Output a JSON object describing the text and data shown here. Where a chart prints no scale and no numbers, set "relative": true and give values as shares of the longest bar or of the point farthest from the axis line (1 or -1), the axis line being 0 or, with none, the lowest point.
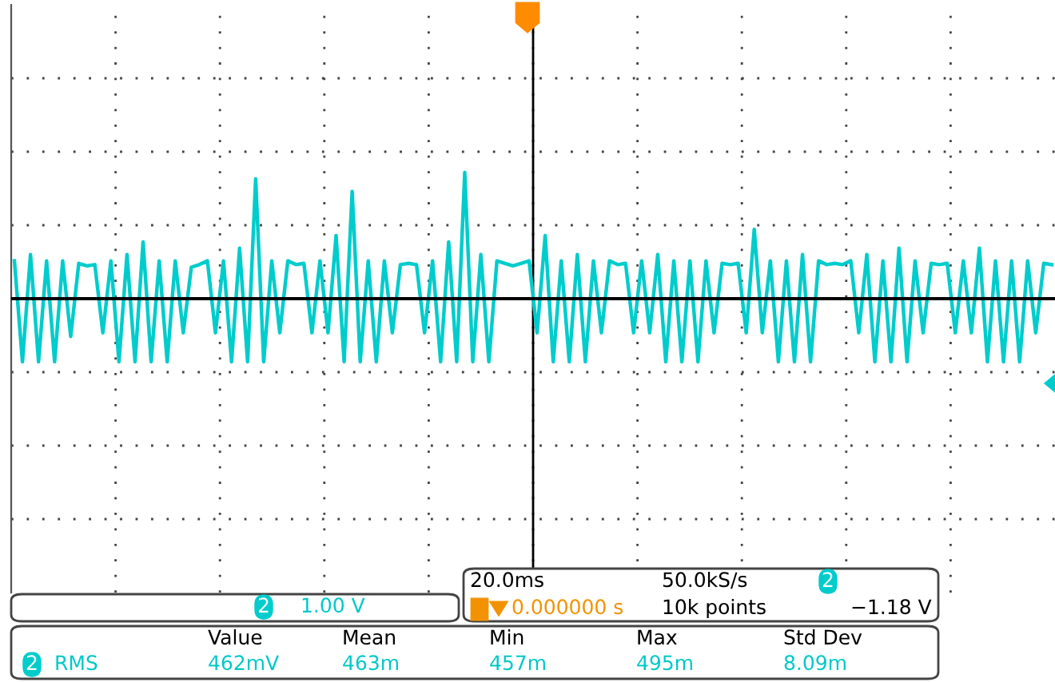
{
  "chart_data": {
    "type": "line",
    "relative": true,
    "grid": true,
    "line_style": "solid",
    "marker": "none",
    "categories": [
      null,
      null,
      null,
      null,
      null,
      null,
      null,
      null,
      null,
      null,
      null,
      null,
      null,
      null,
      null,
      null,
      null,
      null,
      null,
      null,
      null,
      null,
      null,
      null,
      null,
      null,
      null,
      null,
      null,
      null,
      null,
      null,
      null,
      null,
      null,
      null,
      null,
      null,
      null,
      null,
      null,
      null,
      null,
      null,
      null,
      null,
      null,
      null,
      null,
      null,
      null,
      null,
      null,
      null,
      null,
      null,
      null,
      null,
      null,
      null,
      null,
      null,
      null,
      null,
      null,
      null,
      null,
      null,
      null,
      null,
      null,
      null,
      null,
      null,
      null,
      null,
      null,
      null,
      null,
      null,
      null,
      null,
      null,
      null,
      null,
      null,
      null,
      null,
      null,
      null,
      null,
      null,
      null,
      null,
      null,
      null,
      null,
      null,
      null,
      null,
      null,
      null,
      null,
      null,
      null,
      null,
      null,
      null,
      null,
      null,
      null,
      null,
      null,
      null,
      null,
      null,
      null,
      null,
      null,
      null,
      null,
      null,
      null,
      null,
      null,
      null,
      null,
      null,
      null,
      null
    ],
    "series": [
      {
        "color": "#00cccc",
        "values": [
          0.3,
          -0.5,
          0.35,
          -0.5,
          0.3,
          -0.5,
          0.3,
          -0.3,
          0.28,
          0.26,
          0.27,
          -0.27,
          0.3,
          -0.5,
          0.35,
          -0.5,
          0.45,
          -0.5,
          0.3,
          -0.5,
          0.3,
          -0.27,
          0.25,
          0.27,
          0.3,
          -0.27,
          0.3,
          -0.5,
          0.4,
          -0.5,
          0.95,
          -0.5,
          0.3,
          -0.27,
          0.3,
          0.27,
          0.28,
          -0.27,
          0.3,
          -0.27,
          0.5,
          -0.5,
          0.85,
          -0.5,
          0.3,
          -0.5,
          0.3,
          -0.27,
          0.27,
          0.28,
          0.27,
          -0.27,
          0.3,
          -0.5,
          0.45,
          -0.5,
          1.0,
          -0.5,
          0.35,
          -0.5,
          0.3,
          0.28,
          0.26,
          0.28,
          0.3,
          -0.27,
          0.5,
          -0.5,
          0.3,
          -0.5,
          0.35,
          -0.5,
          0.3,
          -0.27,
          0.3,
          0.27,
          0.28,
          -0.27,
          0.3,
          -0.27,
          0.35,
          -0.5,
          0.3,
          -0.5,
          0.3,
          -0.5,
          0.3,
          -0.27,
          0.28,
          0.27,
          0.28,
          -0.27,
          0.55,
          -0.27,
          0.3,
          -0.5,
          0.3,
          -0.5,
          0.35,
          -0.5,
          0.3,
          0.27,
          0.28,
          0.27,
          0.3,
          -0.27,
          0.35,
          -0.5,
          0.3,
          -0.5,
          0.4,
          -0.5,
          0.3,
          -0.27,
          0.28,
          0.27,
          0.28,
          -0.27,
          0.3,
          -0.27,
          0.4,
          -0.5,
          0.3,
          -0.5,
          0.3,
          -0.5,
          0.3,
          -0.27,
          0.28,
          0.27
        ]
      }
    ],
    "annotations": [
      "2",
      "1.00 V",
      "20.0ms",
      "50.0kS/s",
      "2",
      "−1.18 V",
      "0.000000 s",
      "10k points",
      "Value",
      "Mean",
      "Min",
      "Max",
      "Std Dev",
      "2",
      "RMS",
      "462mV",
      "463m",
      "457m",
      "495m",
      "8.09m"
    ]
  }
}
